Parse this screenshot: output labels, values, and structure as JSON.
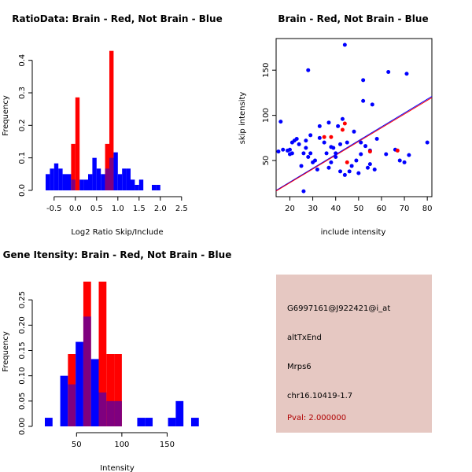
{
  "colors": {
    "red": "#ff0000",
    "blue": "#0000ff",
    "overlap": "#7f007f",
    "panel": "#e6c8c2",
    "pval": "#b00000"
  },
  "chart_data": [
    {
      "type": "bar",
      "id": "ratio",
      "title": "RatioData: Brain - Red, Not Brain - Blue",
      "xlabel": "Log2 Ratio Skip/Include",
      "ylabel": "Frequency",
      "xlim": [
        -0.7,
        2.8
      ],
      "ylim": [
        0,
        0.45
      ],
      "xticks": [
        "-0.5",
        "0.0",
        "0.5",
        "1.0",
        "1.5",
        "2.0",
        "2.5"
      ],
      "yticks": [
        "0.0",
        "0.1",
        "0.2",
        "0.3",
        "0.4"
      ],
      "bin_start": -0.7,
      "bin_width": 0.1,
      "series": [
        {
          "name": "Not Brain",
          "color": "blue",
          "values": [
            0.05,
            0.067,
            0.083,
            0.067,
            0.05,
            0.05,
            0.033,
            0,
            0.033,
            0.033,
            0.05,
            0.1,
            0.067,
            0.05,
            0.067,
            0.1,
            0.117,
            0.05,
            0.067,
            0.067,
            0.033,
            0.017,
            0.033,
            0,
            0,
            0.017,
            0.017,
            0,
            0,
            0,
            0,
            0,
            0,
            0,
            0
          ]
        },
        {
          "name": "Brain",
          "color": "red",
          "values": [
            0,
            0,
            0,
            0,
            0,
            0,
            0.143,
            0.286,
            0,
            0,
            0,
            0,
            0,
            0,
            0.143,
            0.429,
            0,
            0,
            0,
            0,
            0,
            0,
            0,
            0,
            0,
            0,
            0,
            0,
            0,
            0,
            0,
            0,
            0,
            0,
            0
          ]
        }
      ]
    },
    {
      "type": "scatter",
      "id": "scatter",
      "title": "Brain - Red, Not Brain - Blue",
      "xlabel": "include intensity",
      "ylabel": "skip intensity",
      "xlim": [
        14,
        82
      ],
      "ylim": [
        10,
        185
      ],
      "xticks": [
        "20",
        "30",
        "40",
        "50",
        "60",
        "70",
        "80"
      ],
      "yticks": [
        "50",
        "100",
        "150"
      ],
      "series": [
        {
          "name": "Not Brain",
          "color": "blue",
          "points": [
            [
              15,
              60
            ],
            [
              16,
              93
            ],
            [
              17,
              62
            ],
            [
              19,
              61
            ],
            [
              20,
              57
            ],
            [
              20,
              62
            ],
            [
              21,
              58
            ],
            [
              21,
              70
            ],
            [
              22,
              72
            ],
            [
              23,
              74
            ],
            [
              24,
              68
            ],
            [
              25,
              44
            ],
            [
              26,
              16
            ],
            [
              26,
              58
            ],
            [
              27,
              64
            ],
            [
              27,
              72
            ],
            [
              28,
              150
            ],
            [
              28,
              54
            ],
            [
              29,
              58
            ],
            [
              29,
              78
            ],
            [
              30,
              48
            ],
            [
              31,
              50
            ],
            [
              32,
              40
            ],
            [
              33,
              88
            ],
            [
              33,
              75
            ],
            [
              35,
              70
            ],
            [
              36,
              58
            ],
            [
              37,
              42
            ],
            [
              37,
              92
            ],
            [
              38,
              48
            ],
            [
              38,
              65
            ],
            [
              39,
              64
            ],
            [
              40,
              54
            ],
            [
              40,
              58
            ],
            [
              41,
              88
            ],
            [
              42,
              68
            ],
            [
              42,
              38
            ],
            [
              43,
              96
            ],
            [
              44,
              34
            ],
            [
              44,
              178
            ],
            [
              45,
              70
            ],
            [
              46,
              38
            ],
            [
              47,
              44
            ],
            [
              48,
              82
            ],
            [
              49,
              50
            ],
            [
              50,
              36
            ],
            [
              51,
              70
            ],
            [
              51,
              57
            ],
            [
              52,
              139
            ],
            [
              52,
              116
            ],
            [
              53,
              66
            ],
            [
              54,
              42
            ],
            [
              55,
              61
            ],
            [
              55,
              46
            ],
            [
              56,
              112
            ],
            [
              57,
              40
            ],
            [
              58,
              74
            ],
            [
              62,
              57
            ],
            [
              63,
              148
            ],
            [
              66,
              62
            ],
            [
              68,
              50
            ],
            [
              70,
              48
            ],
            [
              71,
              146
            ],
            [
              72,
              56
            ],
            [
              80,
              70
            ]
          ]
        },
        {
          "name": "Brain",
          "color": "red",
          "points": [
            [
              35,
              76
            ],
            [
              38,
              76
            ],
            [
              43,
              84
            ],
            [
              44,
              91
            ],
            [
              45,
              48
            ],
            [
              55,
              60
            ],
            [
              67,
              61
            ]
          ]
        }
      ],
      "fits": [
        {
          "name": "Not Brain",
          "color": "blue",
          "intercept": -4.5,
          "slope": 1.53
        },
        {
          "name": "Brain",
          "color": "red",
          "intercept": -5.0,
          "slope": 1.52
        }
      ]
    },
    {
      "type": "bar",
      "id": "gene",
      "title": "Gene Itensity: Brain - Red, Not Brain - Blue",
      "xlabel": "Intensity",
      "ylabel": "Frequency",
      "xlim": [
        15,
        180
      ],
      "ylim": [
        0,
        0.3
      ],
      "xticks": [
        "50",
        "100",
        "150"
      ],
      "yticks": [
        "0.00",
        "0.05",
        "0.10",
        "0.15",
        "0.20",
        "0.25"
      ],
      "bin_start": 15,
      "bin_width": 8.5,
      "series": [
        {
          "name": "Not Brain",
          "color": "blue",
          "values": [
            0.017,
            0,
            0.1,
            0.083,
            0.167,
            0.217,
            0.133,
            0.067,
            0.05,
            0.05,
            0,
            0,
            0.017,
            0.017,
            0,
            0,
            0.017,
            0.05,
            0,
            0.017
          ]
        },
        {
          "name": "Brain",
          "color": "red",
          "values": [
            0,
            0,
            0,
            0.143,
            0,
            0.286,
            0,
            0.286,
            0.143,
            0.143,
            0,
            0,
            0,
            0,
            0,
            0,
            0,
            0,
            0,
            0
          ]
        }
      ]
    }
  ],
  "info": {
    "probe": "G6997161@J922421@i_at",
    "event": "altTxEnd",
    "gene": "Mrps6",
    "location": "chr16.10419-1.7",
    "pval": "Pval: 2.000000"
  }
}
